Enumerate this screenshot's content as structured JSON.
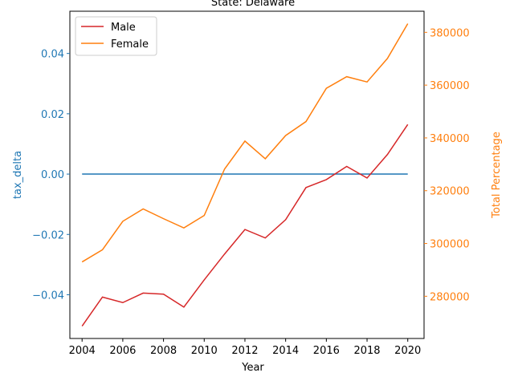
{
  "chart_data": {
    "type": "line",
    "title": "State: Delaware",
    "xlabel": "Year",
    "x": [
      2004,
      2005,
      2006,
      2007,
      2008,
      2009,
      2010,
      2011,
      2012,
      2013,
      2014,
      2015,
      2016,
      2017,
      2018,
      2019,
      2020
    ],
    "x_ticks": [
      2004,
      2006,
      2008,
      2010,
      2012,
      2014,
      2016,
      2018,
      2020
    ],
    "left_axis": {
      "label": "tax_delta",
      "color": "#1f77b4",
      "ylim": [
        -0.0545,
        0.054
      ],
      "ticks": [
        -0.04,
        -0.02,
        0.0,
        0.02,
        0.04
      ],
      "tick_labels": [
        "−0.04",
        "−0.02",
        "0.00",
        "0.02",
        "0.04"
      ],
      "series": [
        {
          "values": [
            0,
            0,
            0,
            0,
            0,
            0,
            0,
            0,
            0,
            0,
            0,
            0,
            0,
            0,
            0,
            0,
            0
          ],
          "color": "#1f77b4"
        }
      ]
    },
    "right_axis": {
      "label": "Total Percentage",
      "color": "#ff7f0e",
      "ylim": [
        264000,
        388000
      ],
      "ticks": [
        280000,
        300000,
        320000,
        340000,
        360000,
        380000
      ],
      "tick_labels": [
        "280000",
        "300000",
        "320000",
        "340000",
        "360000",
        "380000"
      ],
      "series": [
        {
          "name": "Male",
          "color": "#d62728",
          "values": [
            268700,
            279700,
            277600,
            281200,
            280800,
            275900,
            286200,
            296000,
            305300,
            302100,
            309000,
            321200,
            324200,
            329200,
            324800,
            333700,
            345100
          ]
        },
        {
          "name": "Female",
          "color": "#ff7f0e",
          "values": [
            293000,
            297600,
            308400,
            313100,
            309400,
            305900,
            310600,
            328200,
            338800,
            332100,
            340900,
            346200,
            358800,
            363200,
            361200,
            370100,
            383300
          ]
        }
      ]
    },
    "legend": {
      "placement": "upper-left",
      "entries": [
        "Male",
        "Female"
      ]
    },
    "grid": false
  }
}
